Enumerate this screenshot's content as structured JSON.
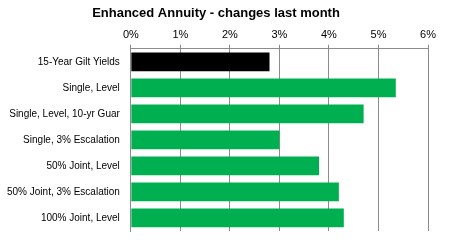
{
  "chart_data": {
    "type": "bar",
    "orientation": "horizontal",
    "title": "Enhanced Annuity - changes last month",
    "categories": [
      "15-Year Gilt Yields",
      "Single, Level",
      "Single, Level, 10-yr Guar",
      "Single, 3% Escalation",
      "50% Joint, Level",
      "50% Joint, 3% Escalation",
      "100% Joint, Level"
    ],
    "values": [
      2.8,
      5.35,
      4.7,
      3.0,
      3.8,
      4.2,
      4.3
    ],
    "colors": [
      "#000000",
      "#00b050",
      "#00b050",
      "#00b050",
      "#00b050",
      "#00b050",
      "#00b050"
    ],
    "xlim": [
      0,
      6
    ],
    "xticks": [
      {
        "value": 0,
        "label": "0%"
      },
      {
        "value": 1,
        "label": "1%"
      },
      {
        "value": 2,
        "label": "2%"
      },
      {
        "value": 3,
        "label": "3%"
      },
      {
        "value": 4,
        "label": "4%"
      },
      {
        "value": 5,
        "label": "5%"
      },
      {
        "value": 6,
        "label": "6%"
      }
    ],
    "grid": true
  }
}
